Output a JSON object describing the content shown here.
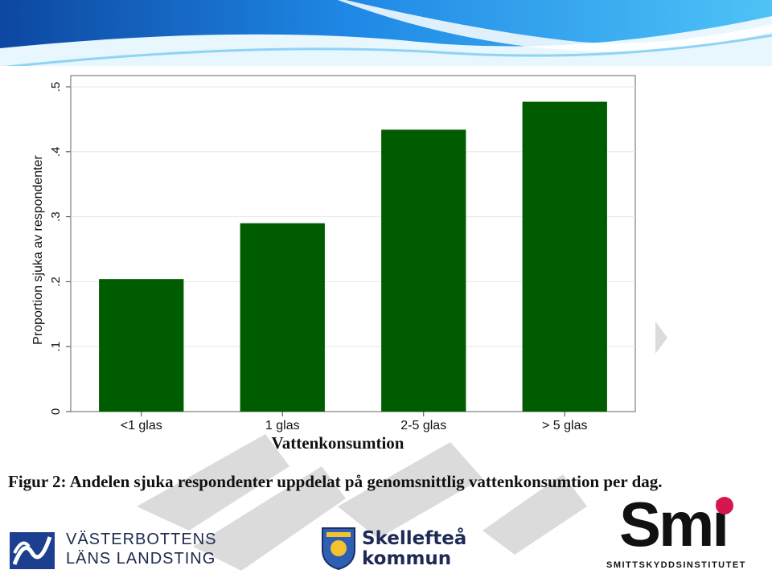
{
  "colors": {
    "bar": "#005c00",
    "banner_dark": "#1565c0",
    "banner_light": "#5ab8e8",
    "smi_dot": "#d6164f"
  },
  "chart_data": {
    "type": "bar",
    "categories": [
      "<1 glas",
      "1 glas",
      "2-5 glas",
      "> 5 glas"
    ],
    "values": [
      0.204,
      0.29,
      0.434,
      0.477
    ],
    "xlabel": "Vattenkonsumtion",
    "ylabel": "Proportion sjuka av respondenter",
    "ylim": [
      0,
      0.5
    ],
    "yticks": [
      0,
      0.1,
      0.2,
      0.3,
      0.4,
      0.5
    ],
    "ytick_labels": [
      "0",
      ".1",
      ".2",
      ".3",
      ".4",
      ".5"
    ],
    "grid": true
  },
  "caption": "Figur 2: Andelen sjuka respondenter uppdelat på genomsnittlig vattenkonsumtion per dag.",
  "logos": {
    "vll": {
      "line1": "VÄSTERBOTTENS",
      "line2": "LÄNS LANDSTING"
    },
    "skelleftea": {
      "line1": "Skellefteå",
      "line2": "kommun"
    },
    "smi": {
      "word": "Smi",
      "subtitle": "SMITTSKYDDSINSTITUTET"
    }
  }
}
